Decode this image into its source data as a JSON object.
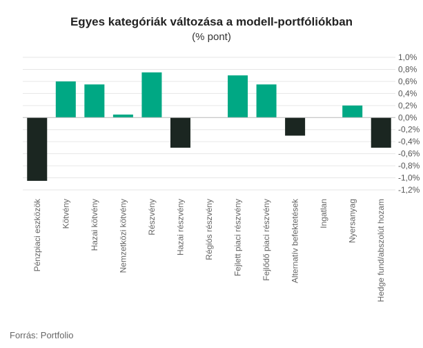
{
  "chart_data": {
    "type": "bar",
    "title": "Egyes kategóriák változása a modell-portfóliókban",
    "subtitle": "(% pont)",
    "categories": [
      "Pénzpiaci eszközök",
      "Kötvény",
      "Hazai kötvény",
      "Nemzetközi kötvény",
      "Részvény",
      "Hazai részvény",
      "Régiós részvény",
      "Fejlett piaci részvény",
      "Fejlődő piaci részvény",
      "Alternatív befektetések",
      "Ingatlan",
      "Nyersanyag",
      "Hedge fund/abszolút hozam"
    ],
    "values": [
      -1.05,
      0.6,
      0.55,
      0.05,
      0.75,
      -0.5,
      0.0,
      0.7,
      0.55,
      -0.3,
      0.0,
      0.2,
      -0.5
    ],
    "ylim": [
      -1.2,
      1.0
    ],
    "yticks": [
      1.0,
      0.8,
      0.6,
      0.4,
      0.2,
      0.0,
      -0.2,
      -0.4,
      -0.6,
      -0.8,
      -1.0,
      -1.2
    ],
    "ytick_labels": [
      "1,0%",
      "0,8%",
      "0,6%",
      "0,4%",
      "0,2%",
      "0,0%",
      "-0,2%",
      "-0,4%",
      "-0,6%",
      "-0,8%",
      "-1,0%",
      "-1,2%"
    ],
    "colors": {
      "positive": "#00a884",
      "negative": "#1b2621"
    },
    "xlabel": "",
    "ylabel": ""
  },
  "source": "Forrás: Portfolio"
}
